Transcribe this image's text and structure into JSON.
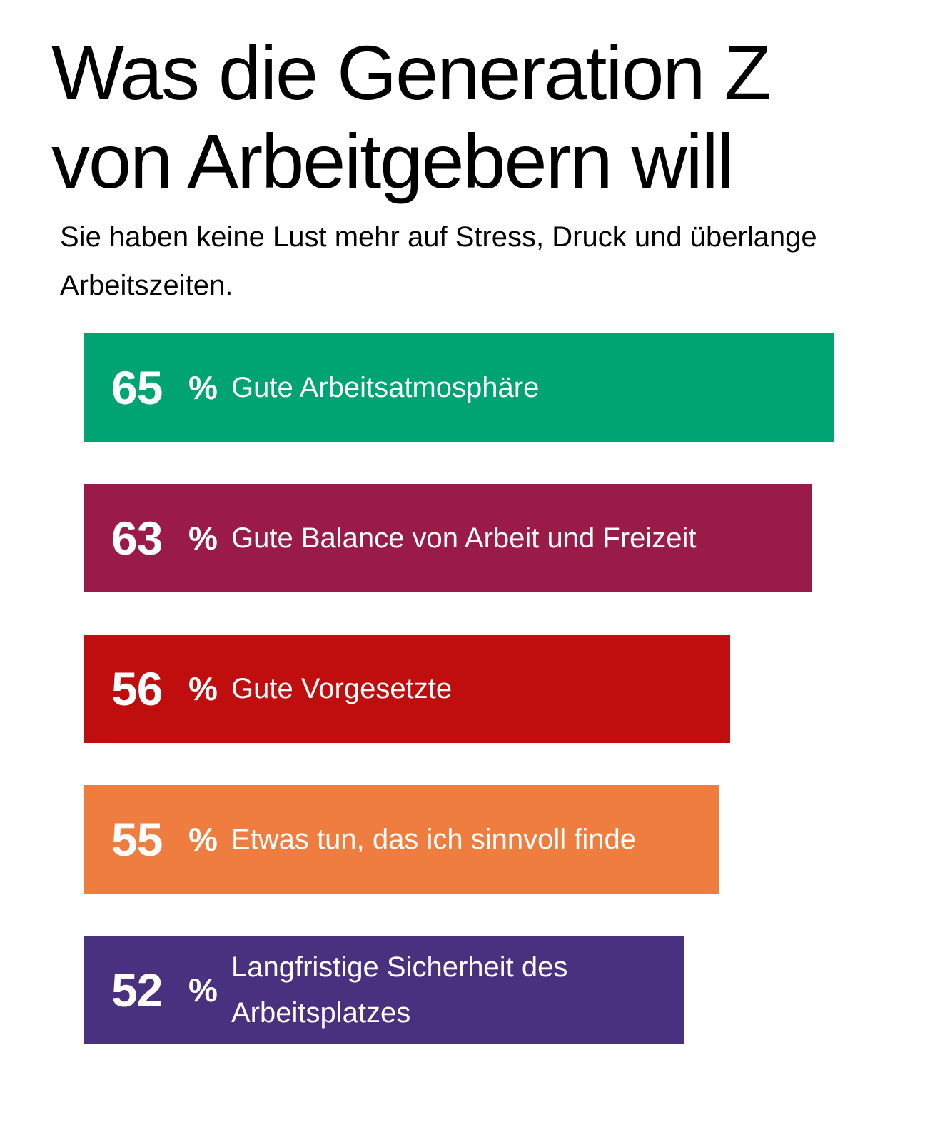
{
  "title": "Was die Generation Z von Arbeitgebern will",
  "subtitle": "Sie haben keine Lust mehr auf Stress, Druck und überlange Arbeitszeiten.",
  "chart_data": {
    "type": "bar",
    "orientation": "horizontal",
    "title": "Was die Generation Z von Arbeitgebern will",
    "subtitle": "Sie haben keine Lust mehr auf Stress, Druck und überlange Arbeitszeiten.",
    "unit": "%",
    "xlim": [
      0,
      65
    ],
    "grid": false,
    "legend": "none",
    "categories": [
      "Gute Arbeitsatmosphäre",
      "Gute Balance von Arbeit und Freizeit",
      "Gute Vorgesetzte",
      "Etwas tun, das ich sinnvoll finde",
      "Langfristige Sicherheit des Arbeitsplatzes"
    ],
    "values": [
      65,
      63,
      56,
      55,
      52
    ],
    "colors": [
      "#00A472",
      "#9A1B48",
      "#C00D0D",
      "#F07D40",
      "#4A3180"
    ]
  }
}
